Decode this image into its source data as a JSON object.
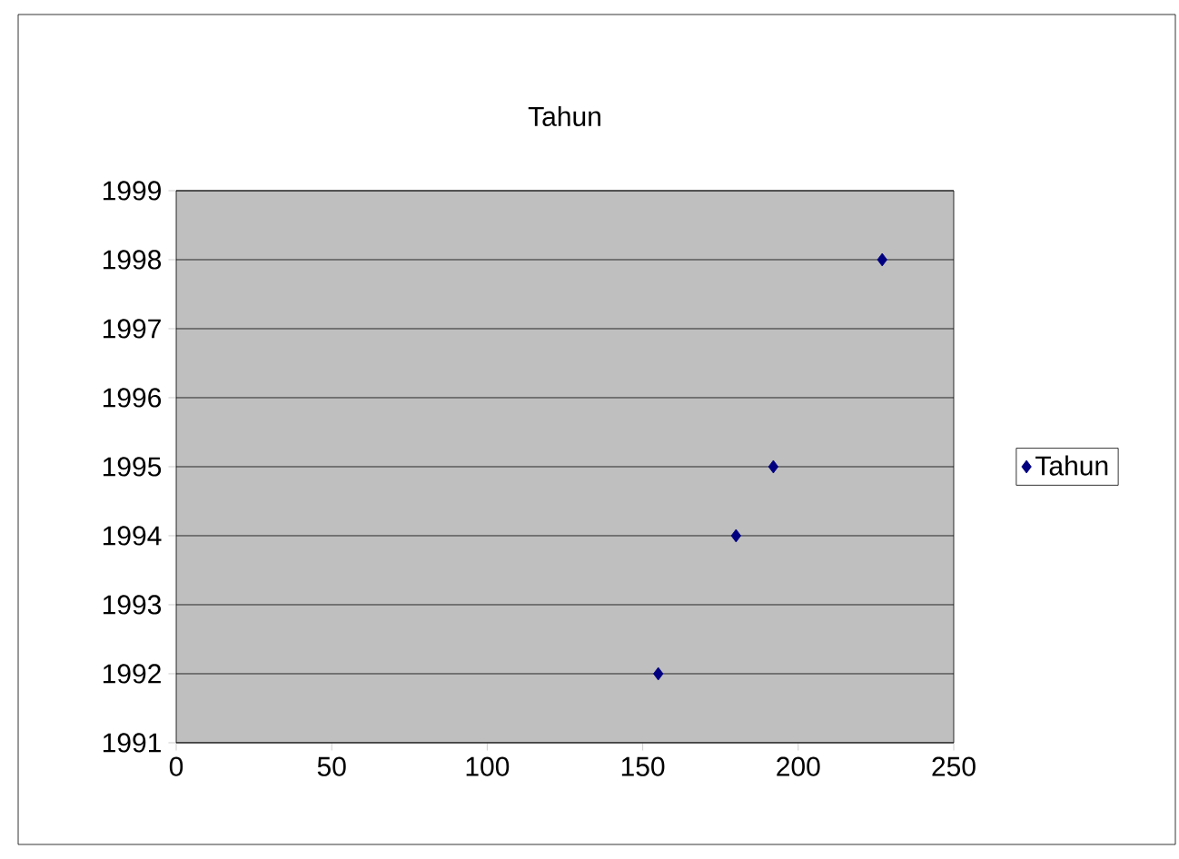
{
  "chart_data": {
    "type": "scatter",
    "title": "Tahun",
    "x": [
      155,
      180,
      192,
      227
    ],
    "series": [
      {
        "name": "Tahun",
        "color": "#000080",
        "values": [
          1992,
          1994,
          1995,
          1998
        ]
      }
    ],
    "xlim": [
      0,
      250
    ],
    "xticks": [
      0,
      50,
      100,
      150,
      200,
      250
    ],
    "ylim": [
      1991,
      1999
    ],
    "yticks": [
      1991,
      1992,
      1993,
      1994,
      1995,
      1996,
      1997,
      1998,
      1999
    ],
    "grid": "y",
    "legend": "right",
    "marker": "diamond"
  }
}
